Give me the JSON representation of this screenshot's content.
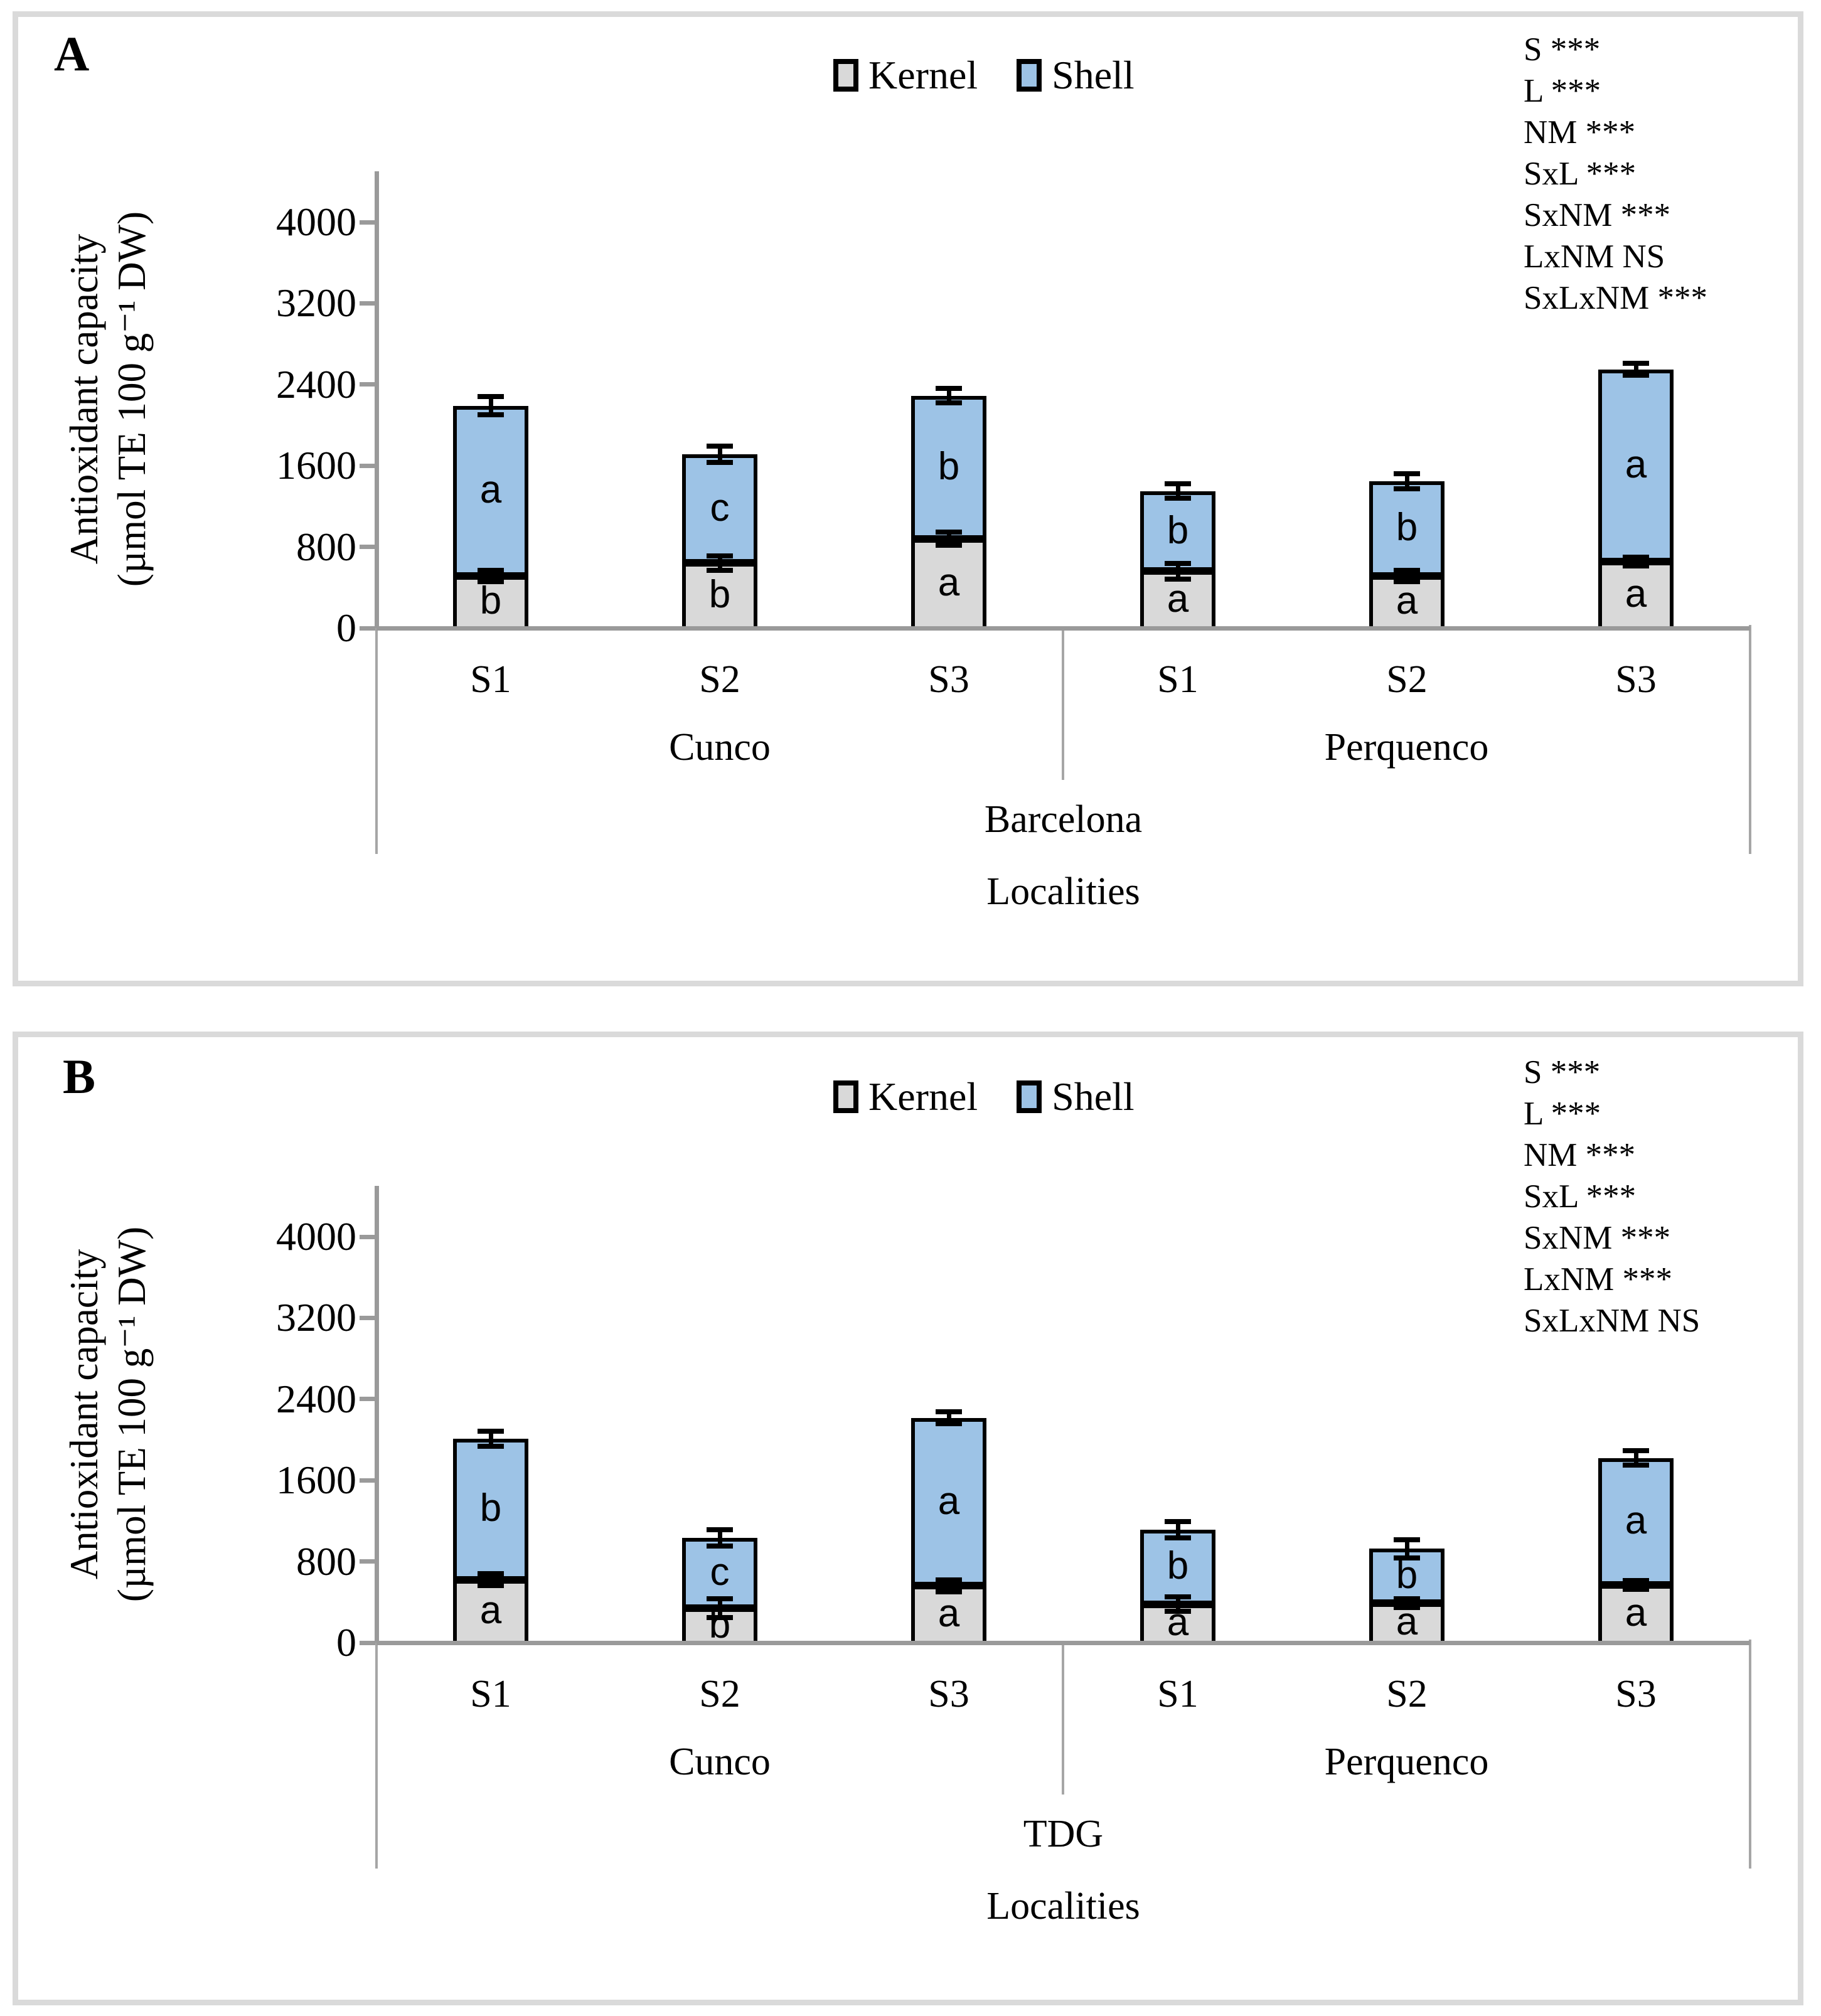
{
  "colors": {
    "kernel_fill": "#d9d9d9",
    "shell_fill": "#9dc3e6",
    "bar_border": "#000000",
    "axis_line": "#9a9a9a",
    "separator_line": "#a6a6a6",
    "panel_border": "#dadada",
    "text": "#000000"
  },
  "panels": [
    {
      "label": "A",
      "stats": [
        "S ***",
        "L ***",
        "NM ***",
        "SxL ***",
        "SxNM ***",
        "LxNM NS",
        "SxLxNM ***"
      ],
      "y_axis": {
        "title_line1": "Antioxidant capacity",
        "title_line2": "(µmol TE 100 g⁻¹ DW)",
        "ticks": [
          4000,
          3200,
          2400,
          1600,
          800,
          0
        ]
      },
      "x_axis": {
        "group": "Barcelona",
        "title": "Localities"
      }
    },
    {
      "label": "B",
      "stats": [
        "S ***",
        "L ***",
        "NM ***",
        "SxL ***",
        "SxNM ***",
        "LxNM ***",
        "SxLxNM NS"
      ],
      "y_axis": {
        "title_line1": "Antioxidant capacity",
        "title_line2": "(µmol TE 100 g⁻¹ DW)",
        "ticks": [
          4000,
          3200,
          2400,
          1600,
          800,
          0
        ]
      },
      "x_axis": {
        "group": "TDG",
        "title": "Localities"
      }
    }
  ],
  "chart_data": [
    {
      "type": "bar",
      "stacked": true,
      "title": "Barcelona",
      "xlabel": "Localities",
      "ylabel": "Antioxidant capacity (µmol TE 100 g⁻¹ DW)",
      "ylim": [
        0,
        4400
      ],
      "grid": false,
      "legend_position": "top-center",
      "seasons": [
        "S1",
        "S2",
        "S3",
        "S1",
        "S2",
        "S3"
      ],
      "localities": [
        "Cunco",
        "Perquenco"
      ],
      "series": [
        {
          "name": "Kernel",
          "values": [
            515,
            640,
            880,
            560,
            515,
            655
          ]
        },
        {
          "name": "Shell",
          "values": [
            1675,
            1070,
            1410,
            790,
            930,
            1895
          ]
        }
      ],
      "totals": [
        2190,
        1710,
        2290,
        1350,
        1445,
        2550
      ],
      "letters": {
        "kernel": [
          "b",
          "b",
          "a",
          "a",
          "a",
          "a"
        ],
        "shell": [
          "a",
          "c",
          "b",
          "b",
          "b",
          "a"
        ]
      },
      "errors": {
        "kernel": [
          55,
          70,
          65,
          75,
          55,
          45
        ],
        "total": [
          90,
          80,
          70,
          70,
          75,
          60
        ]
      }
    },
    {
      "type": "bar",
      "stacked": true,
      "title": "TDG",
      "xlabel": "Localities",
      "ylabel": "Antioxidant capacity (µmol TE 100 g⁻¹ DW)",
      "ylim": [
        0,
        4400
      ],
      "grid": false,
      "legend_position": "top-center",
      "seasons": [
        "S1",
        "S2",
        "S3",
        "S1",
        "S2",
        "S3"
      ],
      "localities": [
        "Cunco",
        "Perquenco"
      ],
      "series": [
        {
          "name": "Kernel",
          "values": [
            620,
            340,
            560,
            380,
            390,
            570
          ]
        },
        {
          "name": "Shell",
          "values": [
            1390,
            695,
            1655,
            735,
            535,
            1250
          ]
        }
      ],
      "totals": [
        2010,
        1035,
        2215,
        1115,
        925,
        1820
      ],
      "letters": {
        "kernel": [
          "a",
          "b",
          "a",
          "a",
          "a",
          "a"
        ],
        "shell": [
          "b",
          "c",
          "a",
          "b",
          "b",
          "a"
        ]
      },
      "errors": {
        "kernel": [
          60,
          90,
          60,
          70,
          45,
          45
        ],
        "total": [
          75,
          80,
          60,
          80,
          90,
          70
        ]
      }
    }
  ]
}
